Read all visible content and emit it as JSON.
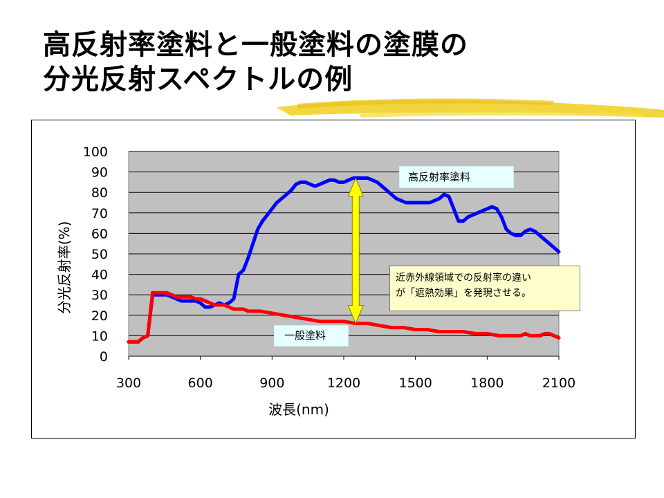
{
  "slide": {
    "title_line1": "高反射率塗料と一般塗料の塗膜の",
    "title_line2": "分光反射スペクトルの例"
  },
  "chart_data": {
    "type": "line",
    "title": "",
    "xlabel": "波長(nm)",
    "ylabel": "分光反射率(%)",
    "xlim": [
      300,
      2100
    ],
    "ylim": [
      0,
      100
    ],
    "xticks": [
      300,
      600,
      900,
      1200,
      1500,
      1800,
      2100
    ],
    "yticks": [
      0,
      10,
      20,
      30,
      40,
      50,
      60,
      70,
      80,
      90,
      100
    ],
    "grid": "horizontal",
    "plot_background": "#c0c0c0",
    "series": [
      {
        "name": "高反射率塗料",
        "color": "#0000ff",
        "x": [
          300,
          340,
          360,
          380,
          400,
          420,
          440,
          460,
          480,
          500,
          520,
          540,
          560,
          580,
          600,
          620,
          640,
          660,
          680,
          700,
          720,
          740,
          760,
          780,
          800,
          820,
          840,
          860,
          880,
          900,
          920,
          940,
          960,
          980,
          1000,
          1020,
          1040,
          1060,
          1080,
          1100,
          1120,
          1140,
          1160,
          1180,
          1200,
          1220,
          1240,
          1260,
          1280,
          1300,
          1320,
          1340,
          1360,
          1380,
          1400,
          1420,
          1440,
          1460,
          1480,
          1500,
          1520,
          1540,
          1560,
          1580,
          1600,
          1620,
          1640,
          1660,
          1680,
          1700,
          1720,
          1740,
          1760,
          1780,
          1800,
          1820,
          1840,
          1860,
          1880,
          1900,
          1920,
          1940,
          1960,
          1980,
          2000,
          2020,
          2040,
          2060,
          2080,
          2100
        ],
        "y": [
          7,
          7,
          9,
          10,
          30,
          30,
          30,
          30,
          29,
          28,
          27,
          27,
          27,
          27,
          26,
          24,
          24,
          25,
          26,
          25,
          26,
          28,
          40,
          42,
          48,
          55,
          62,
          66,
          69,
          72,
          75,
          77,
          79,
          81,
          84,
          85,
          85,
          84,
          83,
          84,
          85,
          86,
          86,
          85,
          85,
          86,
          87,
          87,
          87,
          87,
          86,
          85,
          83,
          81,
          79,
          77,
          76,
          75,
          75,
          75,
          75,
          75,
          75,
          76,
          77,
          79,
          78,
          72,
          66,
          66,
          68,
          69,
          70,
          71,
          72,
          73,
          72,
          68,
          62,
          60,
          59,
          59,
          61,
          62,
          61,
          59,
          57,
          55,
          53,
          51
        ]
      },
      {
        "name": "一般塗料",
        "color": "#ff0000",
        "x": [
          300,
          340,
          360,
          380,
          400,
          420,
          440,
          460,
          480,
          500,
          520,
          540,
          560,
          580,
          600,
          620,
          640,
          660,
          680,
          700,
          720,
          740,
          760,
          780,
          800,
          850,
          900,
          950,
          1000,
          1050,
          1100,
          1150,
          1200,
          1250,
          1300,
          1350,
          1400,
          1450,
          1500,
          1550,
          1600,
          1650,
          1700,
          1750,
          1800,
          1850,
          1900,
          1920,
          1940,
          1960,
          1980,
          2000,
          2020,
          2040,
          2060,
          2080,
          2100
        ],
        "y": [
          7,
          7,
          9,
          10,
          31,
          31,
          31,
          31,
          30,
          29,
          29,
          29,
          29,
          28,
          28,
          27,
          26,
          25,
          25,
          25,
          24,
          23,
          23,
          23,
          22,
          22,
          21,
          20,
          19,
          18,
          17,
          17,
          17,
          16,
          16,
          15,
          14,
          14,
          13,
          13,
          12,
          12,
          12,
          11,
          11,
          10,
          10,
          10,
          10,
          11,
          10,
          10,
          10,
          11,
          11,
          10,
          9
        ]
      }
    ],
    "annotations": [
      {
        "type": "double-arrow",
        "x": 1250,
        "y_from": 16,
        "y_to": 87,
        "color": "#ffff00"
      },
      {
        "type": "text-box",
        "lines": [
          "近赤外線領域での反射率の違い",
          "が「遮熱効果」を発現させる。"
        ]
      }
    ]
  }
}
